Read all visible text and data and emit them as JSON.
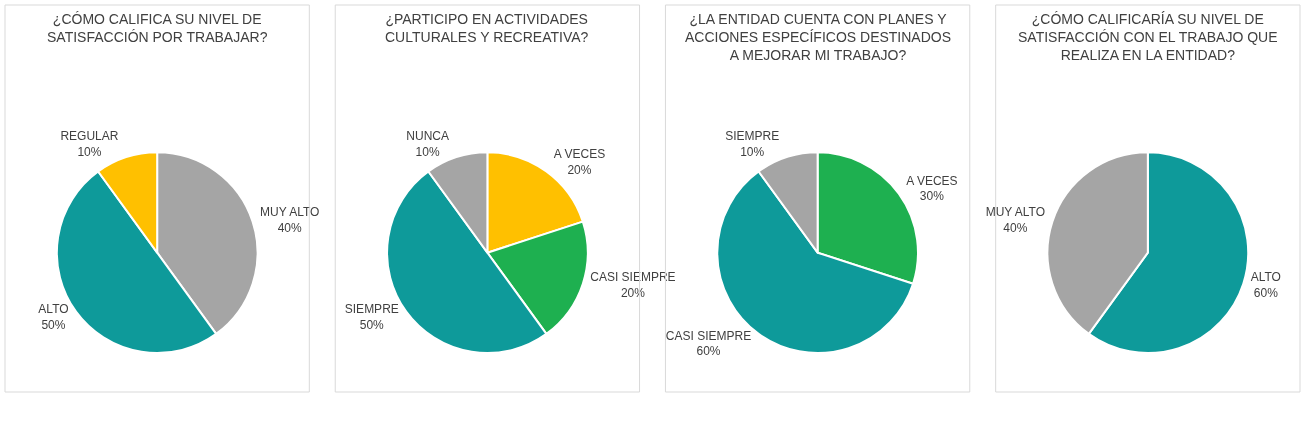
{
  "chart_data": [
    {
      "type": "pie",
      "title": "¿CÓMO CALIFICA SU NIVEL DE SATISFACCIÓN POR TRABAJAR?",
      "categories": [
        "MUY ALTO",
        "ALTO",
        "REGULAR"
      ],
      "values": [
        40,
        50,
        10
      ],
      "value_labels": [
        "40%",
        "50%",
        "10%"
      ],
      "colors": [
        "#a5a5a5",
        "#0e9a9a",
        "#ffc000"
      ]
    },
    {
      "type": "pie",
      "title": "¿PARTICIPO EN ACTIVIDADES CULTURALES Y RECREATIVA?",
      "categories": [
        "A VECES",
        "CASI SIEMPRE",
        "SIEMPRE",
        "NUNCA"
      ],
      "values": [
        20,
        20,
        50,
        10
      ],
      "value_labels": [
        "20%",
        "20%",
        "50%",
        "10%"
      ],
      "colors": [
        "#ffc000",
        "#1eb050",
        "#0e9a9a",
        "#a5a5a5"
      ]
    },
    {
      "type": "pie",
      "title": "¿LA ENTIDAD CUENTA CON PLANES Y ACCIONES ESPECÍFICOS DESTINADOS A MEJORAR MI TRABAJO?",
      "categories": [
        "A VECES",
        "CASI SIEMPRE",
        "SIEMPRE"
      ],
      "values": [
        30,
        60,
        10
      ],
      "value_labels": [
        "30%",
        "60%",
        "10%"
      ],
      "colors": [
        "#1eb050",
        "#0e9a9a",
        "#a5a5a5"
      ]
    },
    {
      "type": "pie",
      "title": "¿CÓMO CALIFICARÍA SU NIVEL DE SATISFACCIÓN CON EL TRABAJO QUE REALIZA EN LA ENTIDAD?",
      "categories": [
        "ALTO",
        "MUY ALTO"
      ],
      "values": [
        60,
        40
      ],
      "value_labels": [
        "60%",
        "40%"
      ],
      "colors": [
        "#0e9a9a",
        "#a5a5a5"
      ]
    }
  ]
}
